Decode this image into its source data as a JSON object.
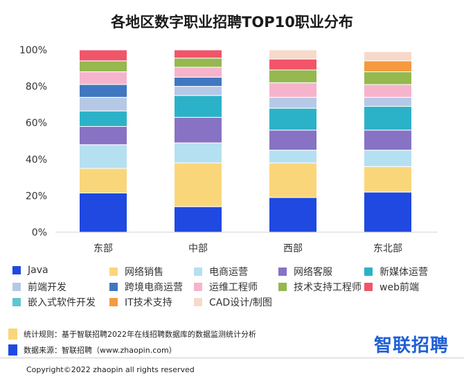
{
  "chart_data": {
    "type": "bar",
    "stacked": true,
    "normalized": true,
    "title": "各地区数字职业招聘TOP10职业分布",
    "categories": [
      "东部",
      "中部",
      "西部",
      "东北部"
    ],
    "yticks": [
      "0%",
      "20%",
      "40%",
      "60%",
      "80%",
      "100%"
    ],
    "ylim": [
      0,
      100
    ],
    "grid": false,
    "legend_position": "bottom",
    "series": [
      {
        "name": "Java",
        "color": "#1f49e0",
        "values": [
          21.5,
          14,
          19,
          22
        ]
      },
      {
        "name": "网络销售",
        "color": "#fad67b",
        "values": [
          13.5,
          24,
          19,
          14
        ]
      },
      {
        "name": "电商运营",
        "color": "#b5e0f2",
        "values": [
          13,
          11,
          7,
          9
        ]
      },
      {
        "name": "网络客服",
        "color": "#8772c4",
        "values": [
          10,
          14,
          11,
          11
        ]
      },
      {
        "name": "新媒体运营",
        "color": "#2bb2c8",
        "values": [
          8.5,
          12,
          12,
          13
        ]
      },
      {
        "name": "前端开发",
        "color": "#b5c9e6",
        "values": [
          7.5,
          5,
          6,
          5
        ]
      },
      {
        "name": "跨境电商运营",
        "color": "#3f78c0",
        "values": [
          7,
          5,
          0,
          0
        ]
      },
      {
        "name": "运维工程师",
        "color": "#f6b4cc",
        "values": [
          7,
          5.5,
          8,
          7
        ]
      },
      {
        "name": "技术支持工程师",
        "color": "#95b84f",
        "values": [
          6,
          5,
          7,
          7
        ]
      },
      {
        "name": "web前端",
        "color": "#f1556a",
        "values": [
          6,
          4.5,
          6,
          0
        ]
      },
      {
        "name": "嵌入式软件开发",
        "color": "#5fc5d2",
        "values": [
          0,
          0,
          0,
          0
        ]
      },
      {
        "name": "IT技术支持",
        "color": "#f59a3e",
        "values": [
          0,
          0,
          0,
          6
        ]
      },
      {
        "name": "CAD设计/制图",
        "color": "#f7d9c9",
        "values": [
          0,
          0,
          5,
          5
        ]
      }
    ]
  },
  "notes": {
    "rule": {
      "text": "统计规则：基于智联招聘2022年在线招聘数据库的数据监测统计分析",
      "color": "#fad67b"
    },
    "source": {
      "text": "数据来源：智联招聘（www.zhaopin.com）",
      "color": "#1f49e0"
    }
  },
  "logo_text": "智联招聘",
  "copyright": "Copyright©2022 zhaopin all rights reserved"
}
